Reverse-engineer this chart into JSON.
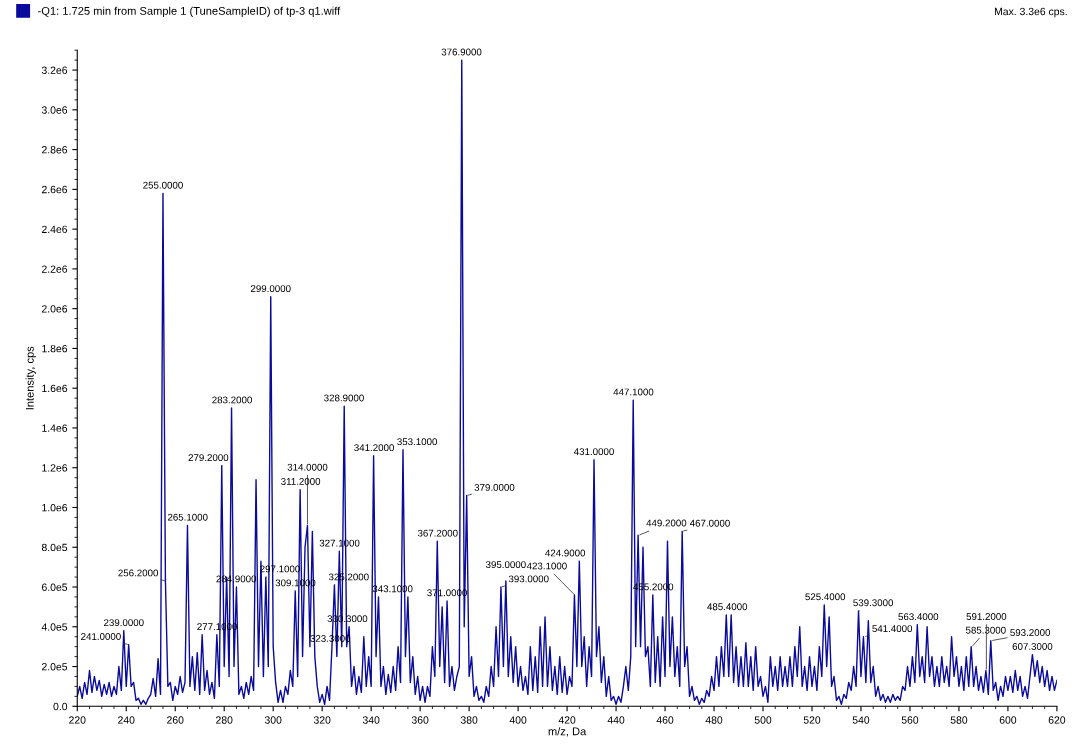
{
  "chart_data": {
    "type": "line",
    "xlabel": "m/z, Da",
    "ylabel": "Intensity, cps",
    "legend": "top left",
    "grid": false,
    "marker": "none",
    "line_style": "solid",
    "xlim": [
      220,
      620
    ],
    "xticks": [
      220,
      240,
      260,
      280,
      300,
      320,
      340,
      360,
      380,
      400,
      420,
      440,
      460,
      480,
      500,
      520,
      540,
      560,
      580,
      600,
      620
    ],
    "ylim": [
      0,
      3300000.0
    ],
    "yticks": [
      {
        "value": 0,
        "label": "0.0"
      },
      {
        "value": 200000.0,
        "label": "2.0e5"
      },
      {
        "value": 400000.0,
        "label": "4.0e5"
      },
      {
        "value": 600000.0,
        "label": "6.0e5"
      },
      {
        "value": 800000.0,
        "label": "8.0e5"
      },
      {
        "value": 1000000.0,
        "label": "1.0e6"
      },
      {
        "value": 1200000.0,
        "label": "1.2e6"
      },
      {
        "value": 1400000.0,
        "label": "1.4e6"
      },
      {
        "value": 1600000.0,
        "label": "1.6e6"
      },
      {
        "value": 1800000.0,
        "label": "1.8e6"
      },
      {
        "value": 2000000.0,
        "label": "2.0e6"
      },
      {
        "value": 2200000.0,
        "label": "2.2e6"
      },
      {
        "value": 2400000.0,
        "label": "2.4e6"
      },
      {
        "value": 2600000.0,
        "label": "2.6e6"
      },
      {
        "value": 2800000.0,
        "label": "2.8e6"
      },
      {
        "value": 3000000.0,
        "label": "3.0e6"
      },
      {
        "value": 3200000.0,
        "label": "3.2e6"
      }
    ],
    "x": [
      220,
      221,
      222,
      223,
      224,
      225,
      226,
      227,
      228,
      229,
      230,
      231,
      232,
      233,
      234,
      235,
      236,
      237,
      238,
      239,
      240,
      241,
      242,
      243,
      244,
      245,
      246,
      247,
      248,
      249,
      250,
      251,
      252,
      253,
      254,
      255,
      256,
      257,
      258,
      259,
      260,
      261,
      262,
      263,
      264,
      265,
      266,
      267,
      268,
      269,
      270,
      271,
      272,
      273,
      274,
      275,
      276,
      277,
      278,
      279,
      280,
      281,
      282,
      283,
      284,
      285,
      286,
      287,
      288,
      289,
      290,
      291,
      292,
      293,
      294,
      295,
      296,
      297,
      298,
      299,
      300,
      301,
      302,
      303,
      304,
      305,
      306,
      307,
      308,
      309,
      310,
      311,
      312,
      313,
      314,
      315,
      316,
      317,
      318,
      319,
      320,
      321,
      322,
      323,
      324,
      325,
      326,
      327,
      328,
      329,
      330,
      331,
      332,
      333,
      334,
      335,
      336,
      337,
      338,
      339,
      340,
      341,
      342,
      343,
      344,
      345,
      346,
      347,
      348,
      349,
      350,
      351,
      352,
      353,
      354,
      355,
      356,
      357,
      358,
      359,
      360,
      361,
      362,
      363,
      364,
      365,
      366,
      367,
      368,
      369,
      370,
      371,
      372,
      373,
      374,
      375,
      376,
      377,
      378,
      379,
      380,
      381,
      382,
      383,
      384,
      385,
      386,
      387,
      388,
      389,
      390,
      391,
      392,
      393,
      394,
      395,
      396,
      397,
      398,
      399,
      400,
      401,
      402,
      403,
      404,
      405,
      406,
      407,
      408,
      409,
      410,
      411,
      412,
      413,
      414,
      415,
      416,
      417,
      418,
      419,
      420,
      421,
      422,
      423,
      424,
      425,
      426,
      427,
      428,
      429,
      430,
      431,
      432,
      433,
      434,
      435,
      436,
      437,
      438,
      439,
      440,
      441,
      442,
      443,
      444,
      445,
      446,
      447,
      448,
      449,
      450,
      451,
      452,
      453,
      454,
      455,
      456,
      457,
      458,
      459,
      460,
      461,
      462,
      463,
      464,
      465,
      466,
      467,
      468,
      469,
      470,
      471,
      472,
      473,
      474,
      475,
      476,
      477,
      478,
      479,
      480,
      481,
      482,
      483,
      484,
      485,
      486,
      487,
      488,
      489,
      490,
      491,
      492,
      493,
      494,
      495,
      496,
      497,
      498,
      499,
      500,
      501,
      502,
      503,
      504,
      505,
      506,
      507,
      508,
      509,
      510,
      511,
      512,
      513,
      514,
      515,
      516,
      517,
      518,
      519,
      520,
      521,
      522,
      523,
      524,
      525,
      526,
      527,
      528,
      529,
      530,
      531,
      532,
      533,
      534,
      535,
      536,
      537,
      538,
      539,
      540,
      541,
      542,
      543,
      544,
      545,
      546,
      547,
      548,
      549,
      550,
      551,
      552,
      553,
      554,
      555,
      556,
      557,
      558,
      559,
      560,
      561,
      562,
      563,
      564,
      565,
      566,
      567,
      568,
      569,
      570,
      571,
      572,
      573,
      574,
      575,
      576,
      577,
      578,
      579,
      580,
      581,
      582,
      583,
      584,
      585,
      586,
      587,
      588,
      589,
      590,
      591,
      592,
      593,
      594,
      595,
      596,
      597,
      598,
      599,
      600,
      601,
      602,
      603,
      604,
      605,
      606,
      607,
      608,
      609,
      610,
      611,
      612,
      613,
      614,
      615,
      616,
      617,
      618,
      619,
      620
    ],
    "series": [
      {
        "name": "-Q1: 1.725 min from Sample 1 (TuneSampleID) of tp-3 q1.wiff",
        "color": "#0a0a9c",
        "values": [
          50000.0,
          100000.0,
          40000.0,
          120000.0,
          60000.0,
          180000.0,
          70000.0,
          150000.0,
          80000.0,
          130000.0,
          50000.0,
          110000.0,
          60000.0,
          120000.0,
          50000.0,
          100000.0,
          60000.0,
          200000.0,
          80000.0,
          380000.0,
          100000.0,
          310000.0,
          100000.0,
          120000.0,
          30000.0,
          40000.0,
          10000.0,
          30000.0,
          10000.0,
          40000.0,
          60000.0,
          140000.0,
          50000.0,
          240000.0,
          60000.0,
          2580000.0,
          630000.0,
          100000.0,
          120000.0,
          30000.0,
          100000.0,
          60000.0,
          150000.0,
          70000.0,
          120000.0,
          910000.0,
          100000.0,
          250000.0,
          80000.0,
          270000.0,
          60000.0,
          360000.0,
          80000.0,
          180000.0,
          60000.0,
          120000.0,
          40000.0,
          360000.0,
          100000.0,
          1210000.0,
          200000.0,
          650000.0,
          150000.0,
          1500000.0,
          200000.0,
          600000.0,
          60000.0,
          100000.0,
          40000.0,
          120000.0,
          60000.0,
          150000.0,
          80000.0,
          1140000.0,
          200000.0,
          730000.0,
          150000.0,
          650000.0,
          200000.0,
          2060000.0,
          300000.0,
          120000.0,
          20000.0,
          80000.0,
          20000.0,
          100000.0,
          60000.0,
          180000.0,
          100000.0,
          580000.0,
          150000.0,
          1090000.0,
          250000.0,
          800000.0,
          910000.0,
          300000.0,
          880000.0,
          250000.0,
          100000.0,
          20000.0,
          60000.0,
          10000.0,
          100000.0,
          30000.0,
          300000.0,
          610000.0,
          250000.0,
          780000.0,
          300000.0,
          1510000.0,
          300000.0,
          400000.0,
          100000.0,
          200000.0,
          60000.0,
          150000.0,
          70000.0,
          350000.0,
          100000.0,
          250000.0,
          100000.0,
          1260000.0,
          250000.0,
          550000.0,
          100000.0,
          200000.0,
          60000.0,
          160000.0,
          70000.0,
          200000.0,
          80000.0,
          300000.0,
          120000.0,
          1290000.0,
          250000.0,
          550000.0,
          120000.0,
          250000.0,
          60000.0,
          150000.0,
          30000.0,
          100000.0,
          20000.0,
          100000.0,
          50000.0,
          300000.0,
          150000.0,
          830000.0,
          200000.0,
          500000.0,
          120000.0,
          530000.0,
          100000.0,
          200000.0,
          80000.0,
          150000.0,
          200000.0,
          3250000.0,
          400000.0,
          1060000.0,
          150000.0,
          250000.0,
          50000.0,
          100000.0,
          30000.0,
          50000.0,
          20000.0,
          100000.0,
          50000.0,
          200000.0,
          100000.0,
          400000.0,
          150000.0,
          600000.0,
          200000.0,
          630000.0,
          150000.0,
          350000.0,
          120000.0,
          300000.0,
          100000.0,
          200000.0,
          80000.0,
          150000.0,
          60000.0,
          300000.0,
          80000.0,
          250000.0,
          70000.0,
          400000.0,
          100000.0,
          450000.0,
          100000.0,
          300000.0,
          80000.0,
          200000.0,
          60000.0,
          250000.0,
          70000.0,
          200000.0,
          60000.0,
          150000.0,
          100000.0,
          560000.0,
          200000.0,
          730000.0,
          200000.0,
          350000.0,
          100000.0,
          300000.0,
          150000.0,
          1240000.0,
          250000.0,
          400000.0,
          120000.0,
          250000.0,
          50000.0,
          150000.0,
          30000.0,
          50000.0,
          10000.0,
          50000.0,
          20000.0,
          100000.0,
          200000.0,
          80000.0,
          250000.0,
          1540000.0,
          300000.0,
          860000.0,
          300000.0,
          800000.0,
          250000.0,
          300000.0,
          100000.0,
          560000.0,
          120000.0,
          350000.0,
          100000.0,
          450000.0,
          150000.0,
          830000.0,
          200000.0,
          450000.0,
          150000.0,
          300000.0,
          100000.0,
          880000.0,
          200000.0,
          300000.0,
          50000.0,
          100000.0,
          30000.0,
          50000.0,
          10000.0,
          40000.0,
          20000.0,
          80000.0,
          50000.0,
          150000.0,
          80000.0,
          250000.0,
          100000.0,
          300000.0,
          150000.0,
          460000.0,
          150000.0,
          460000.0,
          120000.0,
          300000.0,
          100000.0,
          250000.0,
          100000.0,
          320000.0,
          100000.0,
          250000.0,
          80000.0,
          300000.0,
          100000.0,
          150000.0,
          50000.0,
          100000.0,
          20000.0,
          250000.0,
          100000.0,
          200000.0,
          80000.0,
          250000.0,
          100000.0,
          200000.0,
          100000.0,
          250000.0,
          100000.0,
          300000.0,
          150000.0,
          400000.0,
          100000.0,
          200000.0,
          80000.0,
          250000.0,
          100000.0,
          200000.0,
          80000.0,
          300000.0,
          150000.0,
          510000.0,
          200000.0,
          450000.0,
          100000.0,
          150000.0,
          30000.0,
          50000.0,
          10000.0,
          60000.0,
          40000.0,
          120000.0,
          80000.0,
          200000.0,
          100000.0,
          480000.0,
          150000.0,
          350000.0,
          120000.0,
          430000.0,
          120000.0,
          200000.0,
          50000.0,
          100000.0,
          30000.0,
          60000.0,
          20000.0,
          50000.0,
          20000.0,
          60000.0,
          30000.0,
          50000.0,
          30000.0,
          100000.0,
          80000.0,
          200000.0,
          100000.0,
          250000.0,
          120000.0,
          410000.0,
          150000.0,
          250000.0,
          120000.0,
          400000.0,
          150000.0,
          250000.0,
          100000.0,
          200000.0,
          100000.0,
          250000.0,
          120000.0,
          200000.0,
          100000.0,
          350000.0,
          150000.0,
          250000.0,
          100000.0,
          200000.0,
          80000.0,
          250000.0,
          100000.0,
          300000.0,
          100000.0,
          200000.0,
          80000.0,
          150000.0,
          70000.0,
          180000.0,
          60000.0,
          330000.0,
          80000.0,
          120000.0,
          30000.0,
          100000.0,
          50000.0,
          150000.0,
          80000.0,
          150000.0,
          70000.0,
          180000.0,
          80000.0,
          150000.0,
          50000.0,
          100000.0,
          40000.0,
          150000.0,
          260000.0,
          150000.0,
          230000.0,
          120000.0,
          200000.0,
          100000.0,
          180000.0,
          80000.0,
          150000.0,
          80000.0,
          130000.0
        ]
      }
    ],
    "annotations": [
      {
        "text": "255.0000",
        "x": 255,
        "y": 2580000.0
      },
      {
        "text": "256.2000",
        "x": 256.2,
        "y": 630000.0
      },
      {
        "text": "239.0000",
        "x": 239,
        "y": 380000.0
      },
      {
        "text": "241.0000",
        "x": 241,
        "y": 310000.0
      },
      {
        "text": "265.1000",
        "x": 265.1,
        "y": 910000.0
      },
      {
        "text": "277.1000",
        "x": 277.1,
        "y": 360000.0
      },
      {
        "text": "279.2000",
        "x": 279.2,
        "y": 1210000.0
      },
      {
        "text": "283.2000",
        "x": 283.2,
        "y": 1500000.0
      },
      {
        "text": "284.9000",
        "x": 284.9,
        "y": 600000.0
      },
      {
        "text": "297.1000",
        "x": 297.1,
        "y": 650000.0
      },
      {
        "text": "299.0000",
        "x": 299,
        "y": 2060000.0
      },
      {
        "text": "309.1000",
        "x": 309.1,
        "y": 580000.0
      },
      {
        "text": "311.2000",
        "x": 311.2,
        "y": 1090000.0
      },
      {
        "text": "314.0000",
        "x": 314,
        "y": 910000.0
      },
      {
        "text": "323.3000",
        "x": 323.3,
        "y": 300000.0
      },
      {
        "text": "325.2000",
        "x": 325.2,
        "y": 610000.0
      },
      {
        "text": "327.1000",
        "x": 327.1,
        "y": 780000.0
      },
      {
        "text": "328.9000",
        "x": 328.9,
        "y": 1510000.0
      },
      {
        "text": "330.3000",
        "x": 330.3,
        "y": 400000.0
      },
      {
        "text": "341.2000",
        "x": 341.2,
        "y": 1260000.0
      },
      {
        "text": "343.1000",
        "x": 343.1,
        "y": 550000.0
      },
      {
        "text": "353.1000",
        "x": 353.1,
        "y": 1290000.0
      },
      {
        "text": "367.2000",
        "x": 367.2,
        "y": 830000.0
      },
      {
        "text": "371.0000",
        "x": 371,
        "y": 530000.0
      },
      {
        "text": "376.9000",
        "x": 376.9,
        "y": 3250000.0
      },
      {
        "text": "379.0000",
        "x": 379,
        "y": 1060000.0
      },
      {
        "text": "393.0000",
        "x": 393,
        "y": 600000.0
      },
      {
        "text": "395.0000",
        "x": 395,
        "y": 630000.0
      },
      {
        "text": "423.1000",
        "x": 423.1,
        "y": 560000.0
      },
      {
        "text": "424.9000",
        "x": 424.9,
        "y": 730000.0
      },
      {
        "text": "431.0000",
        "x": 431,
        "y": 1240000.0
      },
      {
        "text": "447.1000",
        "x": 447.1,
        "y": 1540000.0
      },
      {
        "text": "449.2000",
        "x": 449.2,
        "y": 860000.0
      },
      {
        "text": "455.2000",
        "x": 455.2,
        "y": 560000.0
      },
      {
        "text": "467.0000",
        "x": 467,
        "y": 880000.0
      },
      {
        "text": "485.4000",
        "x": 485.4,
        "y": 460000.0
      },
      {
        "text": "525.4000",
        "x": 525.4,
        "y": 510000.0
      },
      {
        "text": "539.3000",
        "x": 539.3,
        "y": 480000.0
      },
      {
        "text": "541.4000",
        "x": 541.4,
        "y": 350000.0
      },
      {
        "text": "563.4000",
        "x": 563.4,
        "y": 410000.0
      },
      {
        "text": "585.3000",
        "x": 585.3,
        "y": 300000.0
      },
      {
        "text": "591.2000",
        "x": 591.2,
        "y": 180000.0
      },
      {
        "text": "593.2000",
        "x": 593.2,
        "y": 330000.0
      },
      {
        "text": "607.3000",
        "x": 610,
        "y": 260000.0
      },
      "Max. 3.3e6 cps."
    ]
  }
}
